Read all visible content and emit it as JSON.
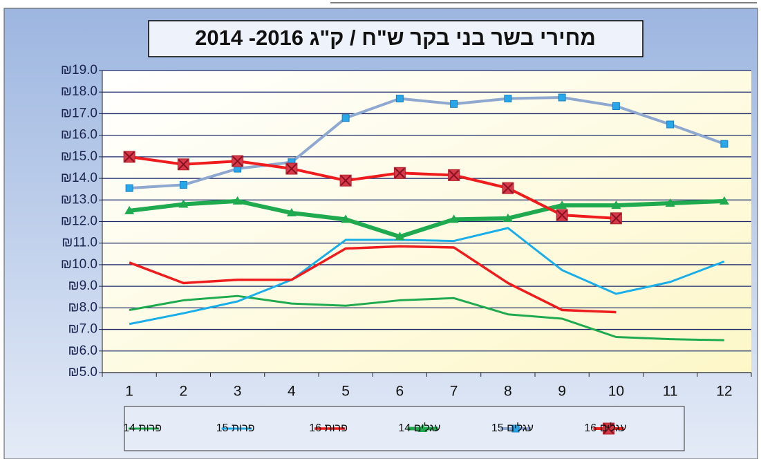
{
  "chart_data": {
    "type": "line",
    "title": "מחירי בשר בני בקר ש\"ח / ק\"ג  2016- 2014",
    "categories": [
      "1",
      "2",
      "3",
      "4",
      "5",
      "6",
      "7",
      "8",
      "9",
      "10",
      "11",
      "12"
    ],
    "ylim": [
      5,
      19
    ],
    "yticks": [
      {
        "value": 5,
        "label": "₪5.0"
      },
      {
        "value": 6,
        "label": "₪6.0"
      },
      {
        "value": 7,
        "label": "₪7.0"
      },
      {
        "value": 8,
        "label": "₪8.0"
      },
      {
        "value": 9,
        "label": "₪9.0"
      },
      {
        "value": 10,
        "label": "₪10.0"
      },
      {
        "value": 11,
        "label": "₪11.0"
      },
      {
        "value": 12,
        "label": "₪12.0"
      },
      {
        "value": 13,
        "label": "₪13.0"
      },
      {
        "value": 14,
        "label": "₪14.0"
      },
      {
        "value": 15,
        "label": "₪15.0"
      },
      {
        "value": 16,
        "label": "₪16.0"
      },
      {
        "value": 17,
        "label": "₪17.0"
      },
      {
        "value": 18,
        "label": "₪18.0"
      },
      {
        "value": 19,
        "label": "₪19.0"
      }
    ],
    "grid": true,
    "legend": "bottom",
    "series": [
      {
        "name": "פרות 14",
        "color": "#1faa50",
        "width": 3,
        "marker": "none",
        "values": [
          7.9,
          8.35,
          8.55,
          8.2,
          8.1,
          8.35,
          8.45,
          7.7,
          7.5,
          6.65,
          6.55,
          6.5
        ]
      },
      {
        "name": "פרות 15",
        "color": "#19aee8",
        "width": 3,
        "marker": "none",
        "values": [
          7.25,
          7.75,
          8.3,
          9.3,
          11.15,
          11.15,
          11.1,
          11.7,
          9.75,
          8.65,
          9.2,
          10.15
        ]
      },
      {
        "name": "פרות 16",
        "color": "#ee1c1c",
        "width": 3.5,
        "marker": "none",
        "values": [
          10.1,
          9.15,
          9.3,
          9.3,
          10.75,
          10.85,
          10.8,
          9.15,
          7.9,
          7.8,
          null,
          null
        ]
      },
      {
        "name": "עגלים 14",
        "color": "#1faa50",
        "width": 6,
        "marker": "triangle",
        "values": [
          12.5,
          12.8,
          12.95,
          12.4,
          12.1,
          11.3,
          12.1,
          12.15,
          12.75,
          12.75,
          12.85,
          12.95
        ]
      },
      {
        "name": "עגלים 15",
        "color": "#8fa8d0",
        "width": 4,
        "marker": "square",
        "marker_color": "#28a8e8",
        "values": [
          13.55,
          13.7,
          14.45,
          14.75,
          16.8,
          17.7,
          17.45,
          17.7,
          17.75,
          17.35,
          16.5,
          15.6
        ]
      },
      {
        "name": "עגלים 16",
        "color": "#ee1c1c",
        "width": 4,
        "marker": "square-x",
        "marker_color": "#d63a4a",
        "values": [
          15.0,
          14.65,
          14.8,
          14.45,
          13.9,
          14.25,
          14.15,
          13.55,
          12.3,
          12.15,
          null,
          null
        ]
      }
    ]
  }
}
